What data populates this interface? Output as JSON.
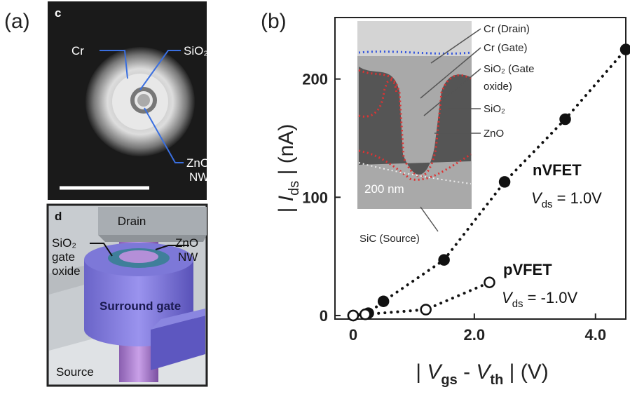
{
  "panel_labels": [
    "(a)",
    "(b)"
  ],
  "micrograph": {
    "tag": "c",
    "labels": [
      "Cr",
      "SiO₂",
      "ZnO",
      "NW"
    ]
  },
  "diagram": {
    "tag": "d",
    "labels": [
      "Drain",
      "SiO₂",
      "gate",
      "oxide",
      "ZnO",
      "NW",
      "Surround gate",
      "Source"
    ]
  },
  "inset": {
    "labels": [
      "Cr (Drain)",
      "Cr (Gate)",
      "SiO₂ (Gate",
      "oxide)",
      "SiO₂",
      "ZnO",
      "200 nm",
      "SiC (Source)"
    ]
  },
  "chart_data": {
    "type": "scatter",
    "ylabel_parts": [
      "| ",
      "I",
      "ds",
      " | (nA)"
    ],
    "xlabel_parts": [
      "| ",
      "V",
      "gs",
      " - ",
      "V",
      "th",
      " | (V)"
    ],
    "annotations": [
      "nVFET",
      [
        "V",
        "ds",
        " = 1.0V"
      ],
      "pVFET",
      [
        "V",
        "ds",
        " = -1.0V"
      ]
    ],
    "xlim": [
      -0.3,
      4.5
    ],
    "ylim": [
      -3,
      252
    ],
    "xticks": [
      0,
      {
        "value": 2,
        "label": "2.0"
      },
      {
        "value": 4,
        "label": "4.0"
      }
    ],
    "yticks": [
      0,
      100,
      200
    ],
    "series": [
      {
        "name": "nVFET",
        "color": "#111111",
        "marker": "filled",
        "x": [
          0,
          0.25,
          0.5,
          1.5,
          2.5,
          3.5,
          4.5
        ],
        "values": [
          0,
          2,
          12,
          47,
          113,
          166,
          225
        ]
      },
      {
        "name": "pVFET",
        "color": "#111111",
        "marker": "open",
        "x": [
          0,
          0.2,
          1.2,
          2.25
        ],
        "values": [
          0,
          1,
          5,
          28
        ]
      }
    ]
  }
}
